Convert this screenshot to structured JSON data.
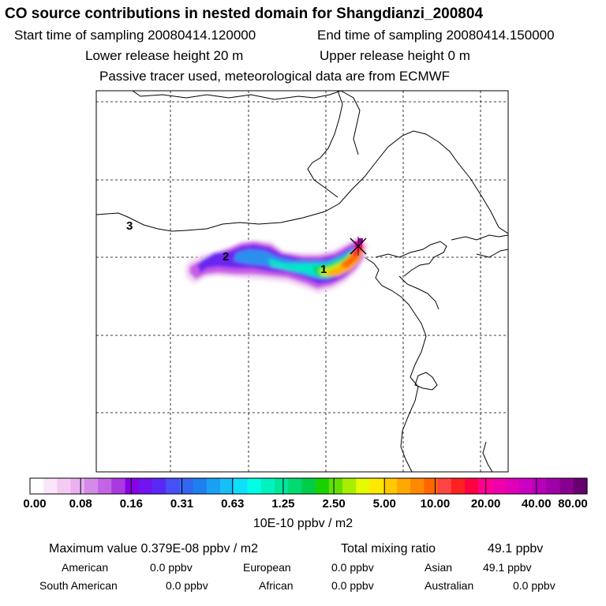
{
  "header": {
    "title": "CO  source contributions in nested domain for Shangdianzi_200804",
    "start_time": "Start time of sampling 20080414.120000",
    "end_time": "End time of sampling 20080414.150000",
    "lower_height": "Lower release height   20 m",
    "upper_height": "Upper release height    0 m",
    "tracer_note": "Passive tracer used, meteorological data are from ECMWF"
  },
  "map": {
    "labels": [
      "1",
      "2",
      "3"
    ],
    "station_marker": "x-icon"
  },
  "colorbar": {
    "ticks": [
      "0.00",
      "0.08",
      "0.16",
      "0.31",
      "0.63",
      "1.25",
      "2.50",
      "5.00",
      "10.00",
      "20.00",
      "40.00",
      "80.00"
    ],
    "unit": "10E-10 ppbv / m2",
    "colors": [
      "#ffffff",
      "#fbe5fb",
      "#f4cbf4",
      "#eab0f0",
      "#d48ae8",
      "#c264e4",
      "#a83ae0",
      "#8a00e6",
      "#7014f0",
      "#5a28f4",
      "#4650f6",
      "#3466f2",
      "#1e80ee",
      "#1aa0f2",
      "#16c0f6",
      "#0ee0fa",
      "#00ffe6",
      "#00f2c0",
      "#00e69a",
      "#00da70",
      "#00ce48",
      "#18d200",
      "#62e000",
      "#a8ee00",
      "#e6fa00",
      "#ffe800",
      "#ffc800",
      "#ffa800",
      "#ff8800",
      "#ff6600",
      "#ff4444",
      "#ff2020",
      "#ff0040",
      "#ff0090",
      "#f000a8",
      "#e000b8",
      "#cc00c0",
      "#b600ba",
      "#a000a8",
      "#880090",
      "#660070"
    ]
  },
  "stats": {
    "max_value_label": "Maximum value  0.379E-08 ppbv / m2",
    "total_label": "Total mixing ratio",
    "total_value": "49.1 ppbv"
  },
  "contributions": [
    {
      "label": "American",
      "value": "0.0 ppbv"
    },
    {
      "label": "European",
      "value": "0.0 ppbv"
    },
    {
      "label": "Asian",
      "value": "49.1 ppbv"
    },
    {
      "label": "South American",
      "value": "0.0 ppbv"
    },
    {
      "label": "African",
      "value": "0.0 ppbv"
    },
    {
      "label": "Australian",
      "value": "0.0 ppbv"
    }
  ]
}
